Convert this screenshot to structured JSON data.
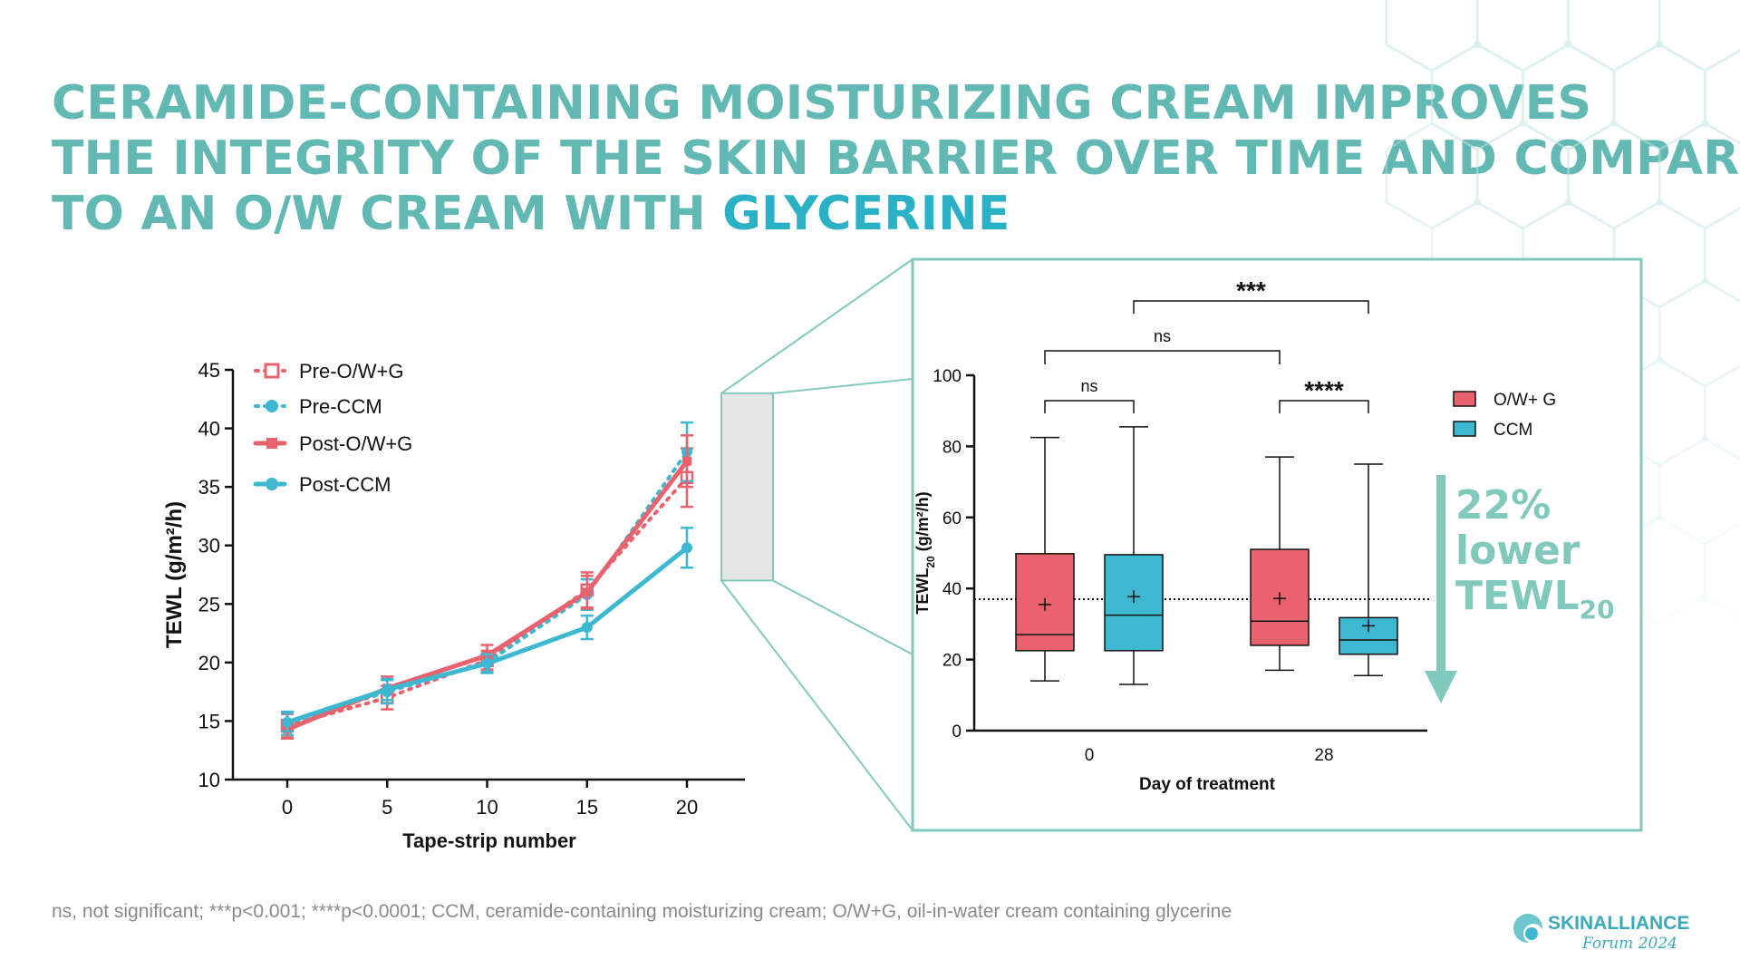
{
  "title": {
    "line1": "CERAMIDE-CONTAINING MOISTURIZING CREAM IMPROVES",
    "line2": "THE INTEGRITY OF THE SKIN BARRIER OVER TIME AND COMPARED",
    "line3_start": "TO AN O/W CREAM WITH ",
    "line3_emphasis": "GLYCERINE"
  },
  "footnote": "ns, not significant; ***p<0.001; ****p<0.0001; CCM, ceramide-containing moisturizing cream; O/W+G, oil-in-water cream containing glycerine",
  "logo": {
    "brand": "SKINALLIANCE",
    "subtitle": "Forum 2024"
  },
  "colors": {
    "ow_g": "#e8636e",
    "ccm": "#3db8d0",
    "title": "#62b8b2",
    "title_emphasis": "#2ab1c6",
    "teal_accent": "#82c9bd",
    "zoom_band": "#e5e5e5"
  },
  "chart_data": [
    {
      "type": "line",
      "xlabel": "Tape-strip number",
      "ylabel": "TEWL (g/m²/h)",
      "x": [
        0,
        5,
        10,
        15,
        20
      ],
      "xlim": [
        -3,
        22.5
      ],
      "ylim": [
        10,
        45
      ],
      "yticks": [
        10,
        15,
        20,
        25,
        30,
        35,
        40,
        45
      ],
      "xticks": [
        0,
        5,
        10,
        15,
        20
      ],
      "legend_position": "top-left",
      "zoom_range": [
        27,
        43
      ],
      "series": [
        {
          "name": "Pre-O/W+G",
          "style": "dotted",
          "marker": "square-open",
          "color": "#e8636e",
          "values": [
            14.6,
            17,
            20.2,
            26.2,
            35.8
          ],
          "errors": [
            1.0,
            1.0,
            0.8,
            1.5,
            2.5
          ]
        },
        {
          "name": "Pre-CCM",
          "style": "dotted",
          "marker": "circle",
          "color": "#3db8d0",
          "values": [
            14.8,
            17.5,
            20,
            25.8,
            38
          ],
          "errors": [
            1.0,
            1.0,
            0.8,
            1.3,
            2.5
          ]
        },
        {
          "name": "Post-O/W+G",
          "style": "solid",
          "marker": "square",
          "color": "#e8636e",
          "values": [
            14.3,
            17.8,
            20.6,
            26,
            37.2
          ],
          "errors": [
            0.8,
            1.0,
            0.9,
            1.4,
            2.2
          ]
        },
        {
          "name": "Post-CCM",
          "style": "solid",
          "marker": "circle",
          "color": "#3db8d0",
          "values": [
            14.9,
            17.7,
            19.9,
            23,
            29.8
          ],
          "errors": [
            0.8,
            0.9,
            0.8,
            1.0,
            1.7
          ]
        }
      ]
    },
    {
      "type": "box",
      "xlabel": "Day of treatment",
      "ylabel_main": "TEWL",
      "ylabel_sub": "20",
      "ylabel_units": " (g/m²/h)",
      "ylim": [
        0,
        100
      ],
      "yticks": [
        0,
        20,
        40,
        60,
        80,
        100
      ],
      "categories": [
        "0",
        "28"
      ],
      "legend_position": "top-right",
      "series": [
        {
          "name": "O/W+ G",
          "color": "#e8636e",
          "boxes": [
            {
              "min": 14,
              "q1": 22.5,
              "median": 27,
              "q3": 49.8,
              "max": 82.5,
              "mean": 35.5
            },
            {
              "min": 17,
              "q1": 24,
              "median": 30.8,
              "q3": 51,
              "max": 77,
              "mean": 37.2
            }
          ]
        },
        {
          "name": "CCM",
          "color": "#3db8d0",
          "boxes": [
            {
              "min": 13,
              "q1": 22.5,
              "median": 32.5,
              "q3": 49.5,
              "max": 85.5,
              "mean": 37.7
            },
            {
              "min": 15.5,
              "q1": 21.5,
              "median": 25.5,
              "q3": 31.8,
              "max": 75,
              "mean": 29.5
            }
          ]
        }
      ],
      "reference_line": 37,
      "significance": [
        {
          "label": "ns",
          "groups": [
            "Day 0 O/W+ G",
            "Day 0 CCM"
          ]
        },
        {
          "label": "ns",
          "groups": [
            "Day 0 O/W+ G",
            "Day 28 O/W+ G"
          ]
        },
        {
          "label": "***",
          "groups": [
            "Day 0 CCM",
            "Day 28 CCM"
          ]
        },
        {
          "label": "****",
          "groups": [
            "Day 28 O/W+ G",
            "Day 28 CCM"
          ]
        }
      ],
      "annotation": {
        "percent": "22%",
        "line2": "lower",
        "line3": "TEWL",
        "line3_sub": "20"
      }
    }
  ]
}
